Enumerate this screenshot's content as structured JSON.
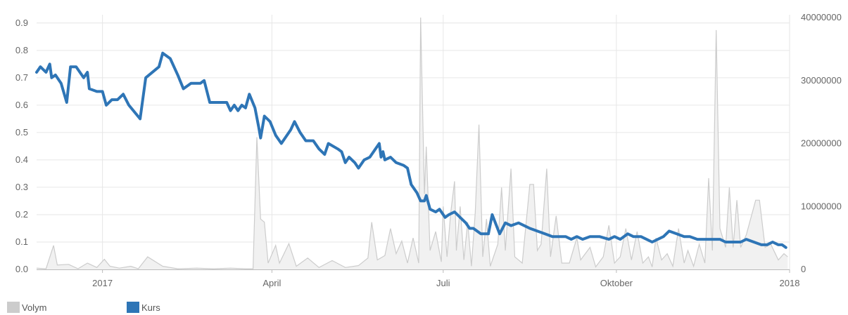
{
  "chart_data": {
    "type": "line",
    "x_axis": {
      "tick_labels": [
        {
          "x": "2017-01-01",
          "label": "2017"
        },
        {
          "x": "2017-04-01",
          "label": "April"
        },
        {
          "x": "2017-07-01",
          "label": "Juli"
        },
        {
          "x": "2017-10-01",
          "label": "Oktober"
        },
        {
          "x": "2018-01-01",
          "label": "2018"
        }
      ],
      "range": [
        "2016-11-27",
        "2018-01-01"
      ]
    },
    "y_left": {
      "range": [
        0,
        0.92
      ],
      "ticks": [
        "0.0",
        "0.1",
        "0.2",
        "0.3",
        "0.4",
        "0.5",
        "0.6",
        "0.7",
        "0.8",
        "0.9"
      ]
    },
    "y_right": {
      "range": [
        0,
        40000000
      ],
      "ticks": [
        "0",
        "10000000",
        "20000000",
        "30000000",
        "40000000"
      ]
    },
    "grid": true,
    "legend_position": "bottom-left",
    "series": [
      {
        "name": "Volym",
        "type": "area",
        "axis": "right",
        "color": "#cccccc",
        "points": [
          [
            "2016-11-27",
            200000
          ],
          [
            "2016-12-02",
            100000
          ],
          [
            "2016-12-06",
            3800000
          ],
          [
            "2016-12-08",
            700000
          ],
          [
            "2016-12-14",
            800000
          ],
          [
            "2016-12-19",
            100000
          ],
          [
            "2016-12-24",
            1000000
          ],
          [
            "2016-12-29",
            300000
          ],
          [
            "2017-01-02",
            1600000
          ],
          [
            "2017-01-05",
            500000
          ],
          [
            "2017-01-10",
            200000
          ],
          [
            "2017-01-16",
            500000
          ],
          [
            "2017-01-20",
            100000
          ],
          [
            "2017-01-25",
            2000000
          ],
          [
            "2017-02-02",
            500000
          ],
          [
            "2017-02-10",
            100000
          ],
          [
            "2017-02-20",
            200000
          ],
          [
            "2017-03-01",
            100000
          ],
          [
            "2017-03-10",
            200000
          ],
          [
            "2017-03-18",
            100000
          ],
          [
            "2017-03-22",
            100000
          ],
          [
            "2017-03-24",
            21000000
          ],
          [
            "2017-03-26",
            8000000
          ],
          [
            "2017-03-28",
            7500000
          ],
          [
            "2017-03-30",
            1000000
          ],
          [
            "2017-04-03",
            3800000
          ],
          [
            "2017-04-05",
            1000000
          ],
          [
            "2017-04-10",
            4100000
          ],
          [
            "2017-04-14",
            500000
          ],
          [
            "2017-04-20",
            1800000
          ],
          [
            "2017-04-26",
            300000
          ],
          [
            "2017-05-03",
            1400000
          ],
          [
            "2017-05-10",
            300000
          ],
          [
            "2017-05-17",
            600000
          ],
          [
            "2017-05-22",
            1800000
          ],
          [
            "2017-05-24",
            7500000
          ],
          [
            "2017-05-27",
            1500000
          ],
          [
            "2017-05-31",
            2200000
          ],
          [
            "2017-06-03",
            6500000
          ],
          [
            "2017-06-06",
            2500000
          ],
          [
            "2017-06-09",
            4500000
          ],
          [
            "2017-06-12",
            1000000
          ],
          [
            "2017-06-15",
            5000000
          ],
          [
            "2017-06-18",
            1000000
          ],
          [
            "2017-06-19",
            40000000
          ],
          [
            "2017-06-21",
            12000000
          ],
          [
            "2017-06-22",
            19500000
          ],
          [
            "2017-06-24",
            3000000
          ],
          [
            "2017-06-27",
            6000000
          ],
          [
            "2017-06-30",
            1200000
          ],
          [
            "2017-07-01",
            10000000
          ],
          [
            "2017-07-03",
            2000000
          ],
          [
            "2017-07-05",
            9000000
          ],
          [
            "2017-07-07",
            14000000
          ],
          [
            "2017-07-08",
            3000000
          ],
          [
            "2017-07-10",
            10000000
          ],
          [
            "2017-07-12",
            1500000
          ],
          [
            "2017-07-14",
            7500000
          ],
          [
            "2017-07-16",
            500000
          ],
          [
            "2017-07-18",
            9000000
          ],
          [
            "2017-07-20",
            23000000
          ],
          [
            "2017-07-22",
            2000000
          ],
          [
            "2017-07-24",
            8000000
          ],
          [
            "2017-07-26",
            500000
          ],
          [
            "2017-07-30",
            4000000
          ],
          [
            "2017-08-01",
            13000000
          ],
          [
            "2017-08-03",
            3000000
          ],
          [
            "2017-08-06",
            16000000
          ],
          [
            "2017-08-08",
            2000000
          ],
          [
            "2017-08-12",
            1000000
          ],
          [
            "2017-08-16",
            13500000
          ],
          [
            "2017-08-18",
            13500000
          ],
          [
            "2017-08-20",
            3000000
          ],
          [
            "2017-08-22",
            4000000
          ],
          [
            "2017-08-25",
            16000000
          ],
          [
            "2017-08-27",
            2000000
          ],
          [
            "2017-08-30",
            8500000
          ],
          [
            "2017-09-02",
            1000000
          ],
          [
            "2017-09-06",
            1000000
          ],
          [
            "2017-09-10",
            5000000
          ],
          [
            "2017-09-12",
            1500000
          ],
          [
            "2017-09-17",
            3500000
          ],
          [
            "2017-09-20",
            400000
          ],
          [
            "2017-09-24",
            2000000
          ],
          [
            "2017-09-27",
            7000000
          ],
          [
            "2017-09-30",
            1000000
          ],
          [
            "2017-10-03",
            2000000
          ],
          [
            "2017-10-06",
            6500000
          ],
          [
            "2017-10-09",
            1500000
          ],
          [
            "2017-10-12",
            6000000
          ],
          [
            "2017-10-15",
            1000000
          ],
          [
            "2017-10-18",
            2000000
          ],
          [
            "2017-10-20",
            400000
          ],
          [
            "2017-10-22",
            5000000
          ],
          [
            "2017-10-25",
            1500000
          ],
          [
            "2017-10-28",
            2500000
          ],
          [
            "2017-10-31",
            500000
          ],
          [
            "2017-11-03",
            6500000
          ],
          [
            "2017-11-06",
            1000000
          ],
          [
            "2017-11-08",
            3000000
          ],
          [
            "2017-11-11",
            500000
          ],
          [
            "2017-11-14",
            4000000
          ],
          [
            "2017-11-17",
            1000000
          ],
          [
            "2017-11-19",
            14500000
          ],
          [
            "2017-11-21",
            3000000
          ],
          [
            "2017-11-23",
            38000000
          ],
          [
            "2017-11-25",
            6500000
          ],
          [
            "2017-11-28",
            3500000
          ],
          [
            "2017-11-30",
            13000000
          ],
          [
            "2017-12-02",
            3500000
          ],
          [
            "2017-12-04",
            11000000
          ],
          [
            "2017-12-06",
            3500000
          ],
          [
            "2017-12-09",
            5500000
          ],
          [
            "2017-12-14",
            11000000
          ],
          [
            "2017-12-16",
            11000000
          ],
          [
            "2017-12-19",
            3500000
          ],
          [
            "2017-12-22",
            4000000
          ],
          [
            "2017-12-26",
            1500000
          ],
          [
            "2017-12-29",
            2500000
          ],
          [
            "2017-12-31",
            2000000
          ]
        ]
      },
      {
        "name": "Kurs",
        "type": "line",
        "axis": "left",
        "color": "#2e75b6",
        "points": [
          [
            "2016-11-27",
            0.72
          ],
          [
            "2016-11-29",
            0.74
          ],
          [
            "2016-12-02",
            0.72
          ],
          [
            "2016-12-04",
            0.75
          ],
          [
            "2016-12-05",
            0.7
          ],
          [
            "2016-12-07",
            0.71
          ],
          [
            "2016-12-10",
            0.68
          ],
          [
            "2016-12-13",
            0.61
          ],
          [
            "2016-12-15",
            0.74
          ],
          [
            "2016-12-18",
            0.74
          ],
          [
            "2016-12-22",
            0.7
          ],
          [
            "2016-12-24",
            0.72
          ],
          [
            "2016-12-25",
            0.66
          ],
          [
            "2016-12-29",
            0.65
          ],
          [
            "2017-01-01",
            0.65
          ],
          [
            "2017-01-03",
            0.6
          ],
          [
            "2017-01-06",
            0.62
          ],
          [
            "2017-01-09",
            0.62
          ],
          [
            "2017-01-12",
            0.64
          ],
          [
            "2017-01-15",
            0.6
          ],
          [
            "2017-01-21",
            0.55
          ],
          [
            "2017-01-24",
            0.7
          ],
          [
            "2017-01-31",
            0.74
          ],
          [
            "2017-02-02",
            0.79
          ],
          [
            "2017-02-06",
            0.77
          ],
          [
            "2017-02-10",
            0.71
          ],
          [
            "2017-02-13",
            0.66
          ],
          [
            "2017-02-17",
            0.68
          ],
          [
            "2017-02-22",
            0.68
          ],
          [
            "2017-02-24",
            0.69
          ],
          [
            "2017-02-27",
            0.61
          ],
          [
            "2017-03-08",
            0.61
          ],
          [
            "2017-03-10",
            0.58
          ],
          [
            "2017-03-12",
            0.6
          ],
          [
            "2017-03-14",
            0.58
          ],
          [
            "2017-03-16",
            0.6
          ],
          [
            "2017-03-18",
            0.59
          ],
          [
            "2017-03-20",
            0.64
          ],
          [
            "2017-03-23",
            0.59
          ],
          [
            "2017-03-25",
            0.52
          ],
          [
            "2017-03-26",
            0.48
          ],
          [
            "2017-03-28",
            0.56
          ],
          [
            "2017-03-31",
            0.54
          ],
          [
            "2017-04-03",
            0.49
          ],
          [
            "2017-04-06",
            0.46
          ],
          [
            "2017-04-11",
            0.51
          ],
          [
            "2017-04-13",
            0.54
          ],
          [
            "2017-04-16",
            0.5
          ],
          [
            "2017-04-19",
            0.47
          ],
          [
            "2017-04-23",
            0.47
          ],
          [
            "2017-04-26",
            0.44
          ],
          [
            "2017-04-29",
            0.42
          ],
          [
            "2017-05-01",
            0.46
          ],
          [
            "2017-05-06",
            0.44
          ],
          [
            "2017-05-08",
            0.43
          ],
          [
            "2017-05-10",
            0.39
          ],
          [
            "2017-05-12",
            0.41
          ],
          [
            "2017-05-15",
            0.39
          ],
          [
            "2017-05-17",
            0.37
          ],
          [
            "2017-05-20",
            0.4
          ],
          [
            "2017-05-23",
            0.41
          ],
          [
            "2017-05-28",
            0.46
          ],
          [
            "2017-05-29",
            0.41
          ],
          [
            "2017-05-30",
            0.43
          ],
          [
            "2017-05-31",
            0.4
          ],
          [
            "2017-06-03",
            0.41
          ],
          [
            "2017-06-06",
            0.39
          ],
          [
            "2017-06-10",
            0.38
          ],
          [
            "2017-06-12",
            0.37
          ],
          [
            "2017-06-14",
            0.31
          ],
          [
            "2017-06-17",
            0.28
          ],
          [
            "2017-06-19",
            0.25
          ],
          [
            "2017-06-21",
            0.25
          ],
          [
            "2017-06-22",
            0.27
          ],
          [
            "2017-06-24",
            0.22
          ],
          [
            "2017-06-27",
            0.21
          ],
          [
            "2017-06-29",
            0.22
          ],
          [
            "2017-07-02",
            0.19
          ],
          [
            "2017-07-04",
            0.2
          ],
          [
            "2017-07-07",
            0.21
          ],
          [
            "2017-07-10",
            0.19
          ],
          [
            "2017-07-13",
            0.17
          ],
          [
            "2017-07-15",
            0.15
          ],
          [
            "2017-07-17",
            0.15
          ],
          [
            "2017-07-21",
            0.13
          ],
          [
            "2017-07-25",
            0.13
          ],
          [
            "2017-07-27",
            0.2
          ],
          [
            "2017-07-31",
            0.13
          ],
          [
            "2017-08-03",
            0.17
          ],
          [
            "2017-08-06",
            0.16
          ],
          [
            "2017-08-10",
            0.17
          ],
          [
            "2017-08-13",
            0.16
          ],
          [
            "2017-08-16",
            0.15
          ],
          [
            "2017-08-20",
            0.14
          ],
          [
            "2017-08-24",
            0.13
          ],
          [
            "2017-08-28",
            0.12
          ],
          [
            "2017-09-04",
            0.12
          ],
          [
            "2017-09-07",
            0.11
          ],
          [
            "2017-09-10",
            0.12
          ],
          [
            "2017-09-13",
            0.11
          ],
          [
            "2017-09-17",
            0.12
          ],
          [
            "2017-09-22",
            0.12
          ],
          [
            "2017-09-27",
            0.11
          ],
          [
            "2017-09-30",
            0.12
          ],
          [
            "2017-10-03",
            0.11
          ],
          [
            "2017-10-07",
            0.13
          ],
          [
            "2017-10-10",
            0.12
          ],
          [
            "2017-10-14",
            0.12
          ],
          [
            "2017-10-17",
            0.11
          ],
          [
            "2017-10-20",
            0.1
          ],
          [
            "2017-10-23",
            0.11
          ],
          [
            "2017-10-26",
            0.12
          ],
          [
            "2017-10-29",
            0.14
          ],
          [
            "2017-11-02",
            0.13
          ],
          [
            "2017-11-06",
            0.12
          ],
          [
            "2017-11-09",
            0.12
          ],
          [
            "2017-11-13",
            0.11
          ],
          [
            "2017-11-18",
            0.11
          ],
          [
            "2017-11-22",
            0.11
          ],
          [
            "2017-11-25",
            0.11
          ],
          [
            "2017-11-28",
            0.1
          ],
          [
            "2017-12-02",
            0.1
          ],
          [
            "2017-12-06",
            0.1
          ],
          [
            "2017-12-09",
            0.11
          ],
          [
            "2017-12-13",
            0.1
          ],
          [
            "2017-12-17",
            0.09
          ],
          [
            "2017-12-20",
            0.09
          ],
          [
            "2017-12-23",
            0.1
          ],
          [
            "2017-12-26",
            0.09
          ],
          [
            "2017-12-28",
            0.09
          ],
          [
            "2017-12-30",
            0.08
          ]
        ]
      }
    ]
  }
}
